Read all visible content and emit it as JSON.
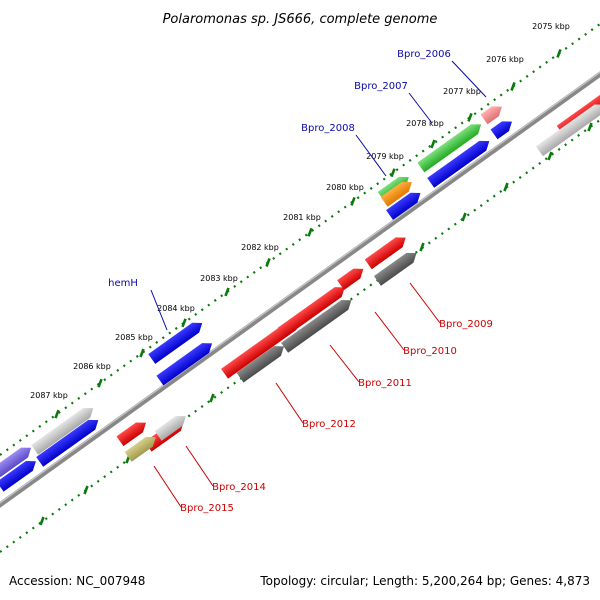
{
  "title": "Polaromonas sp. JS666, complete genome",
  "footer": {
    "accession": "Accession: NC_007948",
    "summary": "Topology: circular; Length: 5,200,264 bp; Genes: 4,873"
  },
  "colors": {
    "forward_label": "#0a0aa8",
    "reverse_label": "#cc0000",
    "tick_green": "#0a7a0a",
    "backbone": "#888888"
  },
  "ticks": [
    "2075 kbp",
    "2076 kbp",
    "2077 kbp",
    "2078 kbp",
    "2079 kbp",
    "2080 kbp",
    "2081 kbp",
    "2082 kbp",
    "2083 kbp",
    "2084 kbp",
    "2085 kbp",
    "2086 kbp",
    "2087 kbp"
  ],
  "gene_labels": {
    "forward": [
      "Bpro_2006",
      "Bpro_2007",
      "Bpro_2008",
      "hemH"
    ],
    "reverse": [
      "Bpro_2009",
      "Bpro_2010",
      "Bpro_2011",
      "Bpro_2012",
      "Bpro_2014",
      "Bpro_2015"
    ]
  }
}
